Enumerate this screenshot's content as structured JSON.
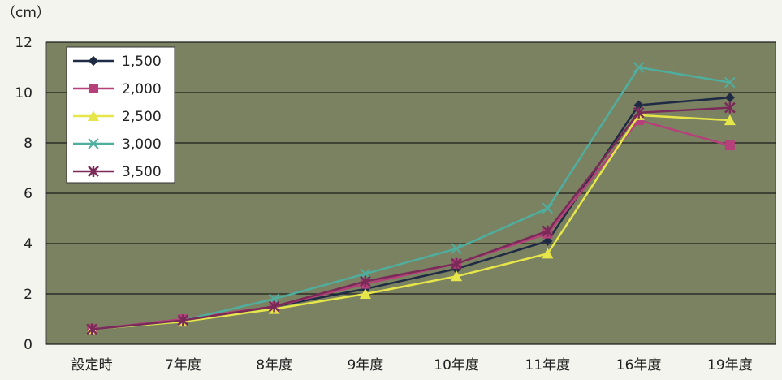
{
  "chart_data": {
    "type": "line",
    "y_label": "（cm）",
    "categories": [
      "設定時",
      "7年度",
      "8年度",
      "9年度",
      "10年度",
      "11年度",
      "16年度",
      "19年度"
    ],
    "series": [
      {
        "name": "1,500",
        "color": "#1f2a44",
        "marker": "diamond",
        "values": [
          0.6,
          0.95,
          1.5,
          2.2,
          3.0,
          4.1,
          9.5,
          9.8
        ]
      },
      {
        "name": "2,000",
        "color": "#b5407a",
        "marker": "square",
        "values": [
          0.6,
          1.0,
          1.5,
          2.4,
          3.2,
          4.4,
          8.9,
          7.9
        ]
      },
      {
        "name": "2,500",
        "color": "#e6e64a",
        "marker": "triangle",
        "values": [
          0.6,
          0.9,
          1.4,
          2.0,
          2.7,
          3.6,
          9.1,
          8.9
        ]
      },
      {
        "name": "3,000",
        "color": "#4fae9e",
        "marker": "x",
        "values": [
          0.6,
          0.95,
          1.8,
          2.8,
          3.8,
          5.4,
          11.0,
          10.4
        ]
      },
      {
        "name": "3,500",
        "color": "#7a2a58",
        "marker": "star",
        "values": [
          0.6,
          0.95,
          1.5,
          2.5,
          3.2,
          4.5,
          9.2,
          9.4
        ]
      }
    ],
    "ylim": [
      0,
      12
    ],
    "yticks": [
      0,
      2,
      4,
      6,
      8,
      10,
      12
    ],
    "grid": true,
    "legend": "top-left"
  }
}
